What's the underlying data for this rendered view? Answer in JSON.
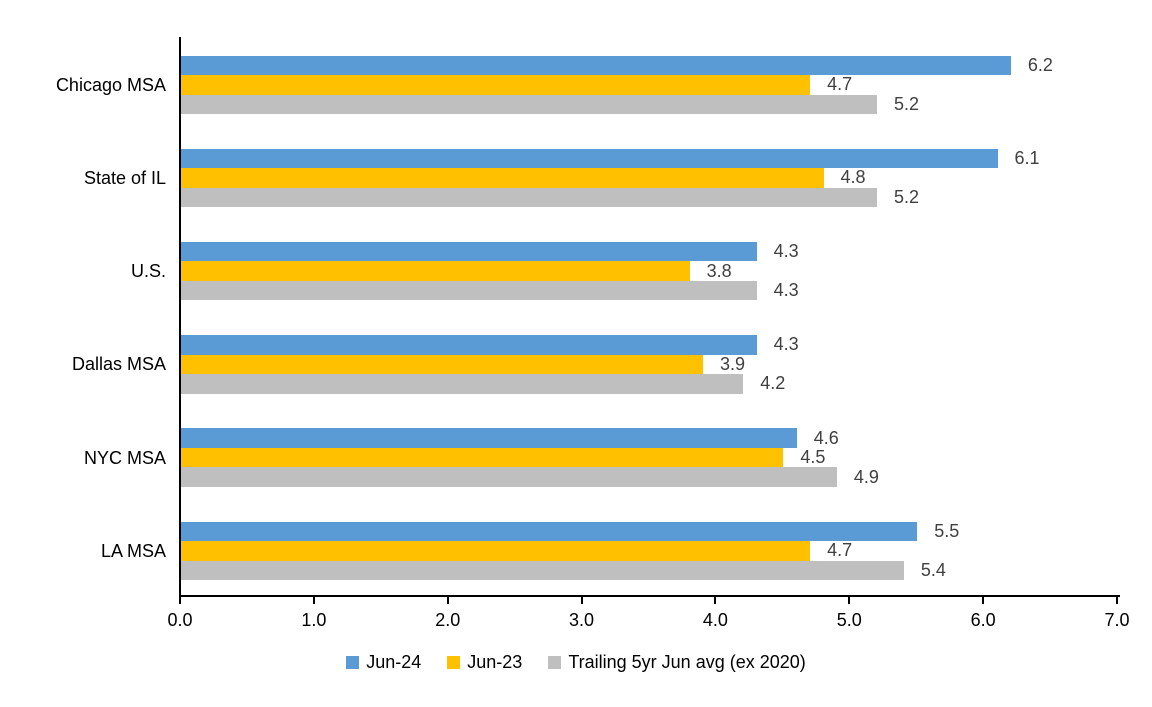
{
  "chart_data": {
    "type": "bar",
    "orientation": "horizontal",
    "title": "",
    "xlabel": "",
    "ylabel": "",
    "grid": false,
    "legend_position": "bottom-center",
    "xlim": [
      0.0,
      7.0
    ],
    "x_ticks": [
      "0.0",
      "1.0",
      "2.0",
      "3.0",
      "4.0",
      "5.0",
      "6.0",
      "7.0"
    ],
    "categories": [
      "Chicago MSA",
      "State of IL",
      "U.S.",
      "Dallas MSA",
      "NYC MSA",
      "LA MSA"
    ],
    "series": [
      {
        "name": "Jun-24",
        "color": "#5B9BD5",
        "values": [
          6.2,
          6.1,
          4.3,
          4.3,
          4.6,
          5.5
        ]
      },
      {
        "name": "Jun-23",
        "color": "#FFC000",
        "values": [
          4.7,
          4.8,
          3.8,
          3.9,
          4.5,
          4.7
        ]
      },
      {
        "name": "Trailing 5yr Jun avg (ex 2020)",
        "color": "#BFBFBF",
        "values": [
          5.2,
          5.2,
          4.3,
          4.2,
          4.9,
          5.4
        ]
      }
    ],
    "value_label_decimals": 1,
    "colors": {
      "axis": "#000000",
      "value_label": "#404040",
      "category_label": "#000000",
      "tick_label": "#000000",
      "background": "#FFFFFF"
    }
  }
}
